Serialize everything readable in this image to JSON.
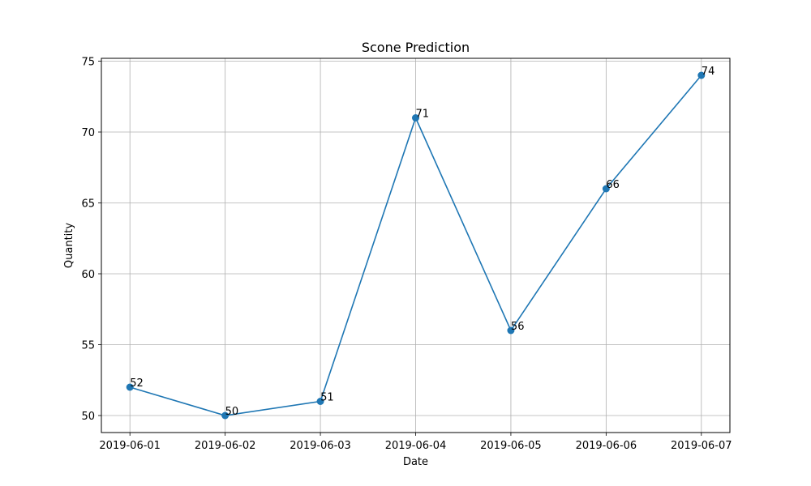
{
  "chart_data": {
    "type": "line",
    "title": "Scone Prediction",
    "xlabel": "Date",
    "ylabel": "Quantity",
    "categories": [
      "2019-06-01",
      "2019-06-02",
      "2019-06-03",
      "2019-06-04",
      "2019-06-05",
      "2019-06-06",
      "2019-06-07"
    ],
    "series": [
      {
        "name": "Quantity",
        "values": [
          52,
          50,
          51,
          71,
          56,
          66,
          74
        ],
        "color": "#1f77b4"
      }
    ],
    "data_labels": [
      "52",
      "50",
      "51",
      "71",
      "56",
      "66",
      "74"
    ],
    "ylim": [
      48.8,
      75.2
    ],
    "yticks": [
      50,
      55,
      60,
      65,
      70,
      75
    ],
    "ytick_labels": [
      "50",
      "55",
      "60",
      "65",
      "70",
      "75"
    ],
    "grid": true,
    "legend": "none"
  }
}
